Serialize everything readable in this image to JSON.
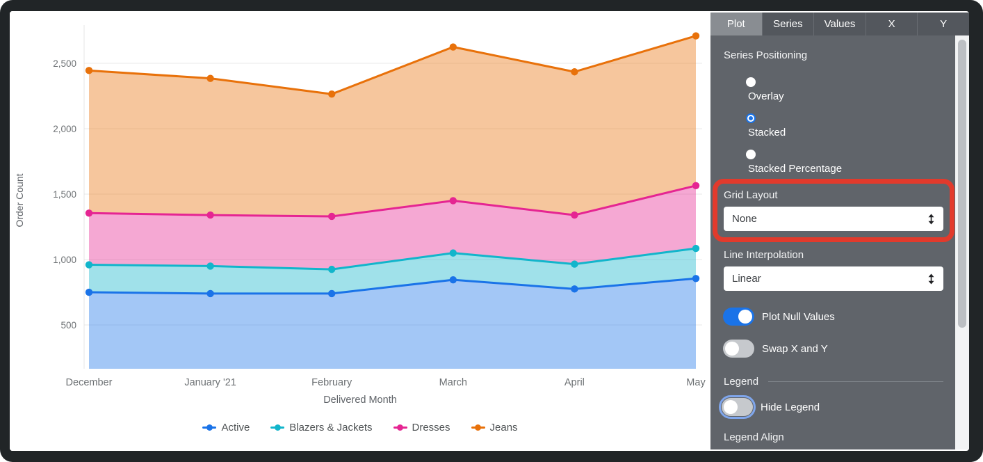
{
  "chart_data": {
    "type": "area",
    "stacking": "stacked",
    "xlabel": "Delivered Month",
    "ylabel": "Order Count",
    "x_categories": [
      "December",
      "January '21",
      "February",
      "March",
      "April",
      "May"
    ],
    "y_tick_labels": [
      "500",
      "1,000",
      "1,500",
      "2,000",
      "2,500"
    ],
    "y_tick_values": [
      500,
      1000,
      1500,
      2000,
      2500
    ],
    "ylim": [
      165,
      2790
    ],
    "grid": true,
    "legend_position": "bottom-center",
    "series": [
      {
        "name": "Active",
        "color": "#1a73e8",
        "values": [
          750,
          740,
          740,
          845,
          775,
          855
        ]
      },
      {
        "name": "Blazers & Jackets",
        "color": "#12b5cb",
        "values": [
          210,
          210,
          185,
          205,
          190,
          230
        ]
      },
      {
        "name": "Dresses",
        "color": "#e52592",
        "values": [
          395,
          390,
          405,
          400,
          375,
          480
        ]
      },
      {
        "name": "Jeans",
        "color": "#e8710a",
        "values": [
          1090,
          1045,
          935,
          1175,
          1095,
          1145
        ]
      }
    ],
    "stacked_totals": {
      "Active": [
        750,
        740,
        740,
        845,
        775,
        855
      ],
      "Blazers & Jackets": [
        960,
        950,
        925,
        1050,
        965,
        1085
      ],
      "Dresses": [
        1355,
        1340,
        1330,
        1450,
        1340,
        1565
      ],
      "Jeans": [
        2445,
        2385,
        2265,
        2625,
        2435,
        2710
      ]
    },
    "area_fill_opacity": 0.4
  },
  "panel": {
    "tabs": [
      {
        "label": "Plot",
        "active": true
      },
      {
        "label": "Series",
        "active": false
      },
      {
        "label": "Values",
        "active": false
      },
      {
        "label": "X",
        "active": false
      },
      {
        "label": "Y",
        "active": false
      }
    ],
    "series_positioning": {
      "title": "Series Positioning",
      "options": [
        {
          "label": "Overlay",
          "selected": false
        },
        {
          "label": "Stacked",
          "selected": true
        },
        {
          "label": "Stacked Percentage",
          "selected": false
        }
      ]
    },
    "grid_layout": {
      "title": "Grid Layout",
      "value": "None",
      "highlighted": true
    },
    "line_interpolation": {
      "title": "Line Interpolation",
      "value": "Linear"
    },
    "toggles": {
      "plot_null_values": {
        "label": "Plot Null Values",
        "on": true
      },
      "swap_x_y": {
        "label": "Swap X and Y",
        "on": false
      }
    },
    "legend": {
      "title": "Legend",
      "hide_legend": {
        "label": "Hide Legend",
        "on": false
      },
      "align_label": "Legend Align"
    }
  },
  "colors": {
    "accent_blue": "#1a73e8",
    "annotation_red": "#e23a2c",
    "panel_bg": "#60646a",
    "tabbar_bg": "#53575d",
    "active_tab_bg": "#898d92",
    "gridline": "#e9e9e9"
  }
}
